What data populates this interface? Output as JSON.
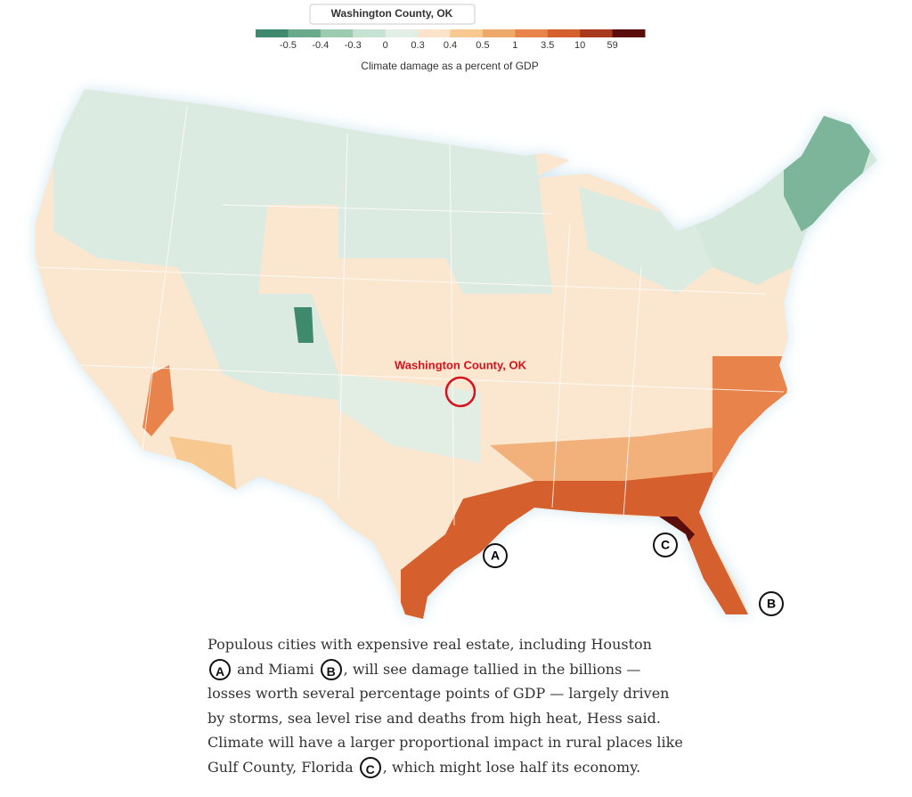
{
  "search_box": "Washington County, OK",
  "legend": {
    "colors": [
      "#3f8a6e",
      "#6aa98c",
      "#9ccbb2",
      "#c6e2d3",
      "#e3efe6",
      "#fbe3c9",
      "#f7c890",
      "#eeaa6b",
      "#e9834c",
      "#d5602e",
      "#a8391c",
      "#5a0d0a"
    ],
    "labels": [
      "-0.5",
      "-0.4",
      "-0.3",
      "0",
      "0.3",
      "0.4",
      "0.5",
      "1",
      "3.5",
      "10",
      "59"
    ],
    "caption": "Climate damage as a percent of GDP"
  },
  "map": {
    "highlight_label": "Washington County, OK",
    "markers": [
      "A",
      "C",
      "B"
    ]
  },
  "paragraph": {
    "lines": [
      [
        "Populous cities with expensive real estate, including Houston"
      ],
      [
        "A",
        " and Miami ",
        "B",
        ", will see damage tallied in the billions —"
      ],
      [
        "losses worth several percentage points of GDP — largely driven"
      ],
      [
        "by storms, sea level rise and deaths from high heat, Hess said."
      ],
      [
        "Climate will have a larger proportional impact in rural places like"
      ],
      [
        "Gulf County, Florida ",
        "C",
        ", which might lose half its economy."
      ]
    ]
  }
}
